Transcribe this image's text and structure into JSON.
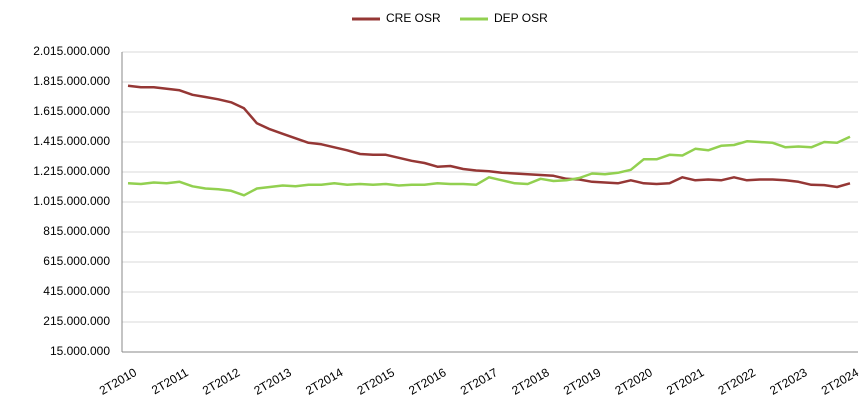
{
  "chart_data": {
    "type": "line",
    "categories": [
      "2T2010",
      null,
      null,
      null,
      "2T2011",
      null,
      null,
      null,
      "2T2012",
      null,
      null,
      null,
      "2T2013",
      null,
      null,
      null,
      "2T2014",
      null,
      null,
      null,
      "2T2015",
      null,
      null,
      null,
      "2T2016",
      null,
      null,
      null,
      "2T2017",
      null,
      null,
      null,
      "2T2018",
      null,
      null,
      null,
      "2T2019",
      null,
      null,
      null,
      "2T2020",
      null,
      null,
      null,
      "2T2021",
      null,
      null,
      null,
      "2T2022",
      null,
      null,
      null,
      "2T2023",
      null,
      null,
      null,
      "2T2024"
    ],
    "series": [
      {
        "name": "CRE OSR",
        "color": "#953735",
        "values": [
          1790000000,
          1780000000,
          1780000000,
          1770000000,
          1760000000,
          1730000000,
          1715000000,
          1700000000,
          1680000000,
          1640000000,
          1540000000,
          1500000000,
          1470000000,
          1440000000,
          1410000000,
          1400000000,
          1380000000,
          1360000000,
          1335000000,
          1330000000,
          1330000000,
          1310000000,
          1290000000,
          1275000000,
          1250000000,
          1255000000,
          1235000000,
          1225000000,
          1220000000,
          1210000000,
          1205000000,
          1200000000,
          1195000000,
          1190000000,
          1170000000,
          1165000000,
          1150000000,
          1145000000,
          1140000000,
          1160000000,
          1140000000,
          1135000000,
          1140000000,
          1180000000,
          1160000000,
          1165000000,
          1160000000,
          1180000000,
          1160000000,
          1165000000,
          1165000000,
          1160000000,
          1150000000,
          1130000000,
          1128000000,
          1115000000,
          1140000000
        ]
      },
      {
        "name": "DEP OSR",
        "color": "#92d050",
        "values": [
          1140000000,
          1135000000,
          1145000000,
          1140000000,
          1150000000,
          1120000000,
          1105000000,
          1100000000,
          1090000000,
          1060000000,
          1105000000,
          1115000000,
          1125000000,
          1120000000,
          1130000000,
          1130000000,
          1140000000,
          1130000000,
          1135000000,
          1130000000,
          1135000000,
          1125000000,
          1130000000,
          1130000000,
          1140000000,
          1135000000,
          1135000000,
          1130000000,
          1180000000,
          1160000000,
          1140000000,
          1135000000,
          1170000000,
          1155000000,
          1160000000,
          1175000000,
          1205000000,
          1200000000,
          1210000000,
          1230000000,
          1300000000,
          1300000000,
          1330000000,
          1325000000,
          1370000000,
          1360000000,
          1390000000,
          1395000000,
          1420000000,
          1415000000,
          1410000000,
          1380000000,
          1385000000,
          1380000000,
          1415000000,
          1410000000,
          1450000000
        ]
      }
    ],
    "ylim": [
      15000000,
      2015000000
    ],
    "yticks": [
      {
        "value": 15000000,
        "label": "15.000.000"
      },
      {
        "value": 215000000,
        "label": "215.000.000"
      },
      {
        "value": 415000000,
        "label": "415.000.000"
      },
      {
        "value": 615000000,
        "label": "615.000.000"
      },
      {
        "value": 815000000,
        "label": "815.000.000"
      },
      {
        "value": 1015000000,
        "label": "1.015.000.000"
      },
      {
        "value": 1215000000,
        "label": "1.215.000.000"
      },
      {
        "value": 1415000000,
        "label": "1.415.000.000"
      },
      {
        "value": 1615000000,
        "label": "1.615.000.000"
      },
      {
        "value": 1815000000,
        "label": "1.815.000.000"
      },
      {
        "value": 2015000000,
        "label": "2.015.000.000"
      }
    ],
    "grid": true,
    "legend": "top"
  }
}
